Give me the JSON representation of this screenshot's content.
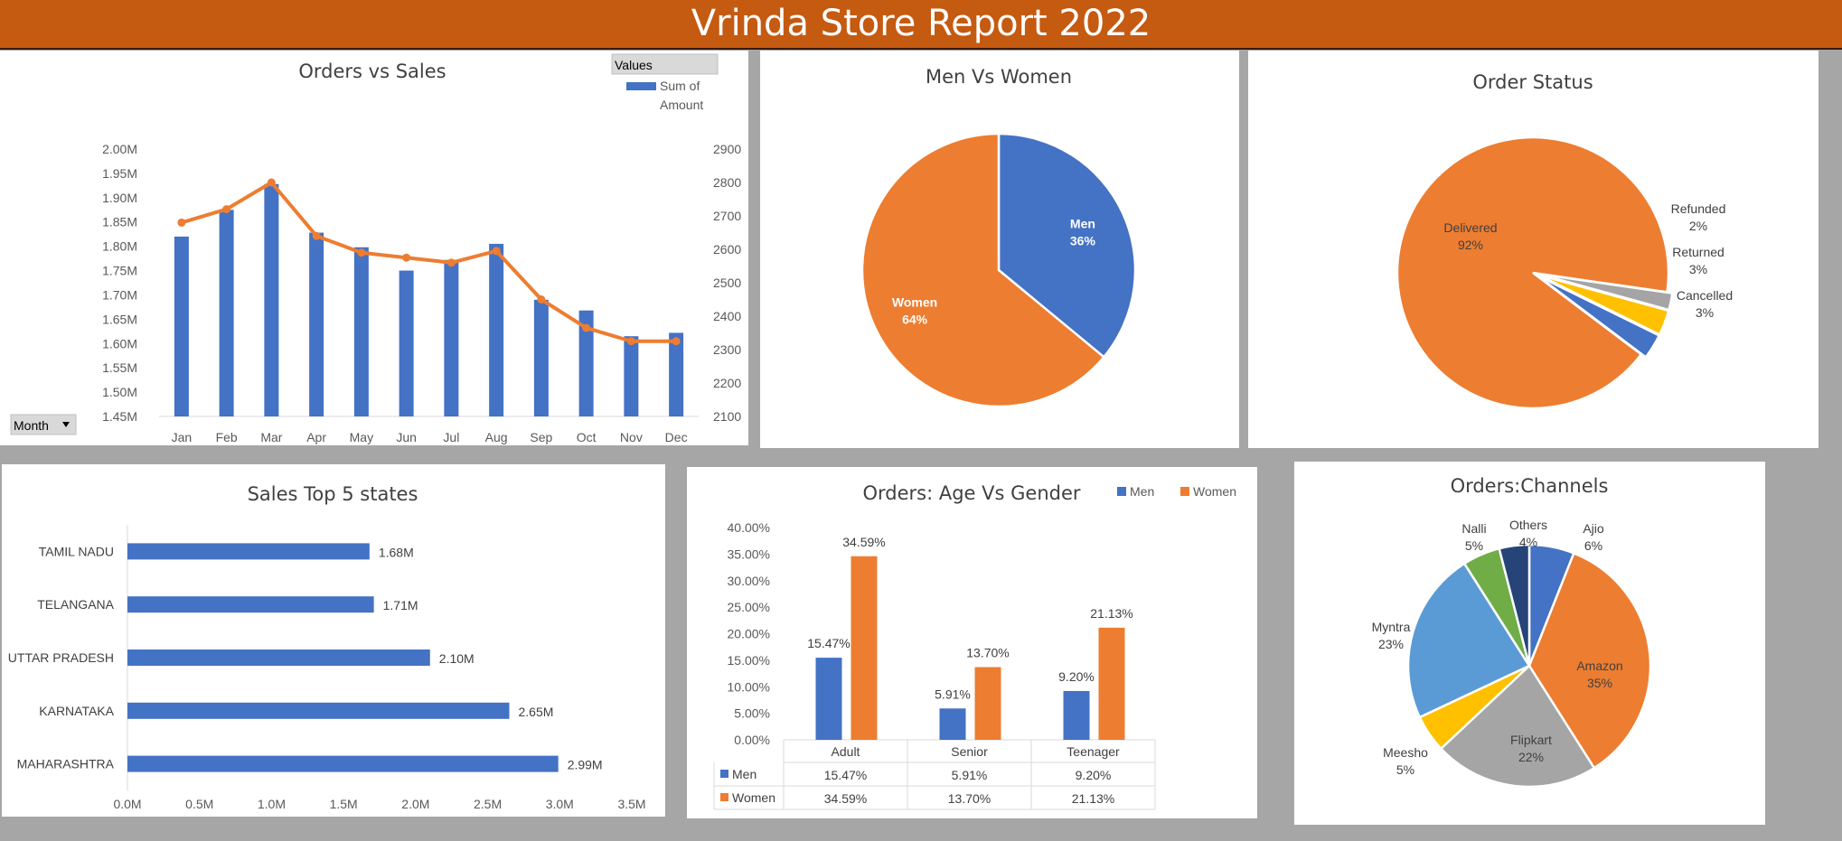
{
  "report_title": "Vrinda Store Report 2022",
  "colors": {
    "blue": "#4472c4",
    "orange": "#ed7d31",
    "gray": "#a5a5a5",
    "yellow": "#ffc000",
    "lightblue": "#5b9bd5",
    "green": "#70ad47",
    "navy": "#264478",
    "banner": "#c55a11"
  },
  "pivot": {
    "values_button": "Values",
    "legend_label_1": "Sum of",
    "legend_label_2": "Amount",
    "month_button": "Month"
  },
  "chart_data": [
    {
      "id": "orders_vs_sales",
      "type": "bar+line",
      "title": "Orders vs Sales",
      "categories": [
        "Jan",
        "Feb",
        "Mar",
        "Apr",
        "May",
        "Jun",
        "Jul",
        "Aug",
        "Sep",
        "Oct",
        "Nov",
        "Dec"
      ],
      "series": [
        {
          "name": "Sum of Amount",
          "type": "bar",
          "axis": "left",
          "values": [
            1.82,
            1.875,
            1.928,
            1.828,
            1.798,
            1.75,
            1.772,
            1.805,
            1.69,
            1.668,
            1.615,
            1.622
          ]
        },
        {
          "type": "line",
          "axis": "right",
          "values": [
            2680,
            2720,
            2800,
            2640,
            2590,
            2575,
            2560,
            2595,
            2450,
            2365,
            2325,
            2325
          ]
        }
      ],
      "yleft": {
        "ticks": [
          "1.45M",
          "1.50M",
          "1.55M",
          "1.60M",
          "1.65M",
          "1.70M",
          "1.75M",
          "1.80M",
          "1.85M",
          "1.90M",
          "1.95M",
          "2.00M"
        ],
        "min": 1.45,
        "max": 2.0
      },
      "yright": {
        "ticks": [
          "2100",
          "2200",
          "2300",
          "2400",
          "2500",
          "2600",
          "2700",
          "2800",
          "2900"
        ],
        "min": 2100,
        "max": 2900
      }
    },
    {
      "id": "men_vs_women",
      "type": "pie",
      "title": "Men Vs Women",
      "slices": [
        {
          "label": "Men",
          "pct": "36%",
          "value": 36,
          "color": "#4472c4"
        },
        {
          "label": "Women",
          "pct": "64%",
          "value": 64,
          "color": "#ed7d31"
        }
      ]
    },
    {
      "id": "order_status",
      "type": "pie",
      "title": "Order Status",
      "slices": [
        {
          "label": "Delivered",
          "pct": "92%",
          "value": 92,
          "color": "#ed7d31"
        },
        {
          "label": "Refunded",
          "pct": "2%",
          "value": 2,
          "color": "#a5a5a5"
        },
        {
          "label": "Returned",
          "pct": "3%",
          "value": 3,
          "color": "#ffc000"
        },
        {
          "label": "Cancelled",
          "pct": "3%",
          "value": 3,
          "color": "#4472c4"
        }
      ]
    },
    {
      "id": "top5_states",
      "type": "bar",
      "orientation": "horizontal",
      "title": "Sales Top 5 states",
      "categories": [
        "TAMIL NADU",
        "TELANGANA",
        "UTTAR PRADESH",
        "KARNATAKA",
        "MAHARASHTRA"
      ],
      "values": [
        1.68,
        1.71,
        2.1,
        2.65,
        2.99
      ],
      "value_labels": [
        "1.68M",
        "1.71M",
        "2.10M",
        "2.65M",
        "2.99M"
      ],
      "xticks": [
        "0.0M",
        "0.5M",
        "1.0M",
        "1.5M",
        "2.0M",
        "2.5M",
        "3.0M",
        "3.5M"
      ],
      "xlim": [
        0,
        3.5
      ]
    },
    {
      "id": "age_vs_gender",
      "type": "bar",
      "title": "Orders: Age Vs Gender",
      "categories": [
        "Adult",
        "Senior",
        "Teenager"
      ],
      "series": [
        {
          "name": "Men",
          "values": [
            15.47,
            5.91,
            9.2
          ],
          "labels": [
            "15.47%",
            "5.91%",
            "9.20%"
          ],
          "color": "#4472c4"
        },
        {
          "name": "Women",
          "values": [
            34.59,
            13.7,
            21.13
          ],
          "labels": [
            "34.59%",
            "13.70%",
            "21.13%"
          ],
          "color": "#ed7d31"
        }
      ],
      "yticks": [
        "0.00%",
        "5.00%",
        "10.00%",
        "15.00%",
        "20.00%",
        "25.00%",
        "30.00%",
        "35.00%",
        "40.00%"
      ],
      "ylim": [
        0,
        40
      ]
    },
    {
      "id": "channels",
      "type": "pie",
      "title": "Orders:Channels",
      "slices": [
        {
          "label": "Ajio",
          "pct": "6%",
          "value": 6,
          "color": "#4472c4"
        },
        {
          "label": "Amazon",
          "pct": "35%",
          "value": 35,
          "color": "#ed7d31"
        },
        {
          "label": "Flipkart",
          "pct": "22%",
          "value": 22,
          "color": "#a5a5a5"
        },
        {
          "label": "Meesho",
          "pct": "5%",
          "value": 5,
          "color": "#ffc000"
        },
        {
          "label": "Myntra",
          "pct": "23%",
          "value": 23,
          "color": "#5b9bd5"
        },
        {
          "label": "Nalli",
          "pct": "5%",
          "value": 5,
          "color": "#70ad47"
        },
        {
          "label": "Others",
          "pct": "4%",
          "value": 4,
          "color": "#264478"
        }
      ]
    }
  ]
}
